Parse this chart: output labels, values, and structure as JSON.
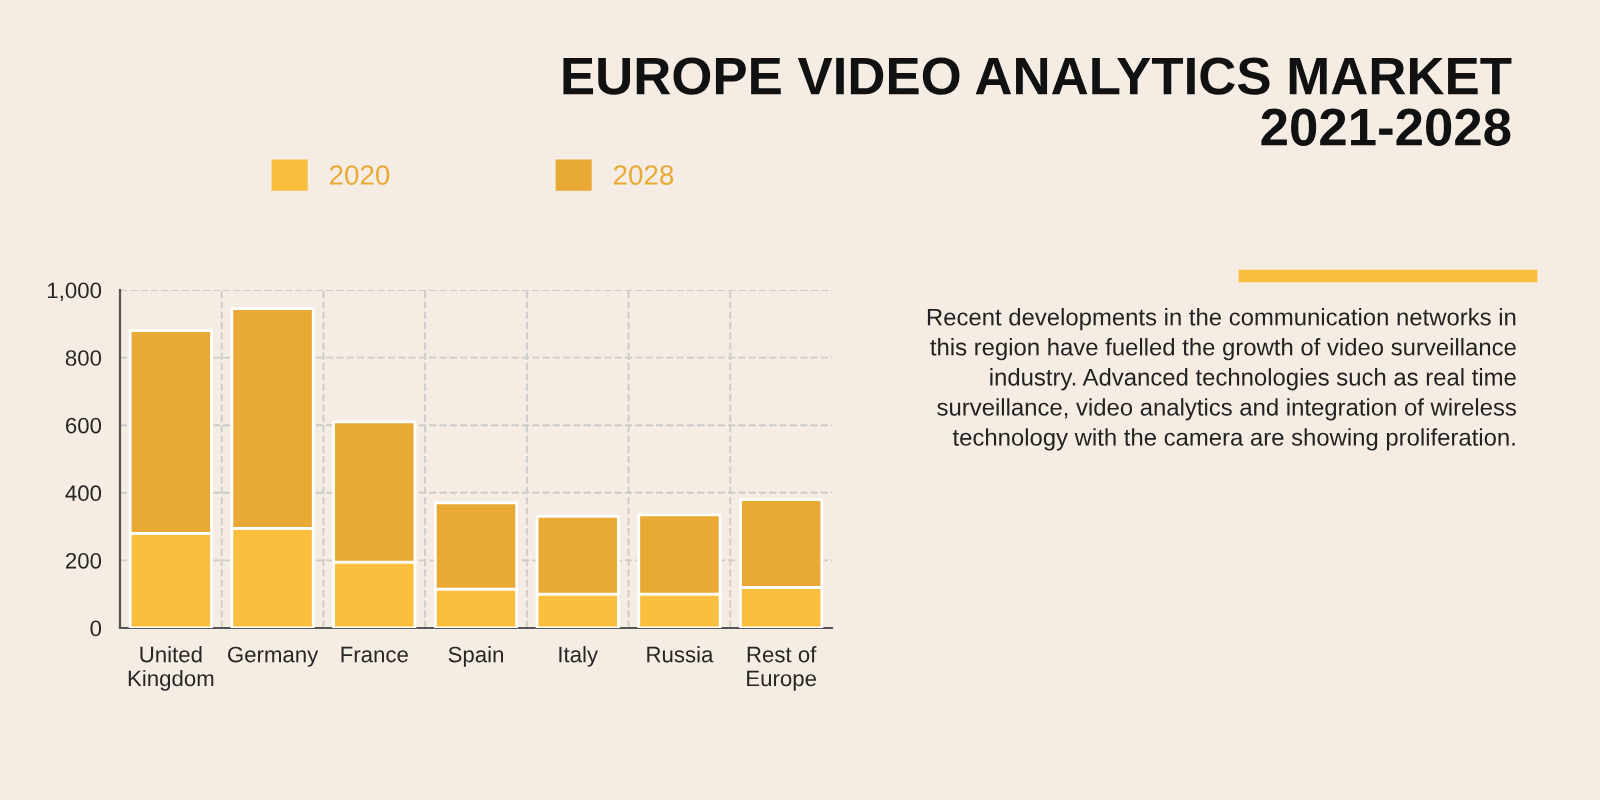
{
  "chart_data": {
    "type": "bar",
    "title": "EUROPE VIDEO ANALYTICS MARKET\n2021-2028",
    "categories": [
      "United\nKingdom",
      "Germany",
      "France",
      "Spain",
      "Italy",
      "Russia",
      "Rest of\nEurope"
    ],
    "stacked": true,
    "series": [
      {
        "name": "2020",
        "color": "#fbbf3f",
        "values": [
          280,
          295,
          195,
          115,
          100,
          100,
          120
        ]
      },
      {
        "name": "2028",
        "color": "#e8a935",
        "values": [
          600,
          650,
          415,
          255,
          230,
          235,
          260
        ]
      }
    ],
    "ylim": [
      0,
      1000
    ],
    "yticks": [
      0,
      200,
      400,
      600,
      800,
      {
        "value": 1000,
        "label": "1,000"
      }
    ],
    "grid": true,
    "legend": "top left",
    "annotations": [
      "Recent developments in the communication networks in this region have fuelled the growth of video surveillance industry. Advanced technologies such as real time surveillance, video analytics and integration of wireless technology with the camera are showing proliferation."
    ]
  }
}
